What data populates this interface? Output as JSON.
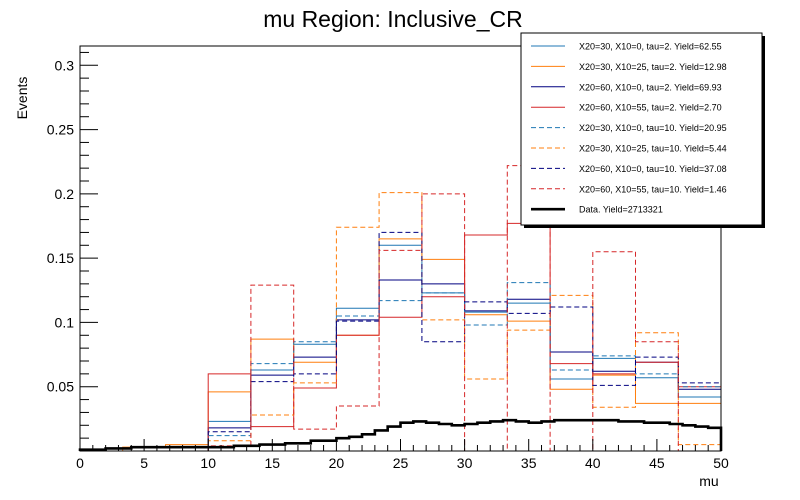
{
  "chart_data": {
    "type": "step",
    "title": "mu Region: Inclusive_CR",
    "xlabel": "mu",
    "ylabel": "Events",
    "xlim": [
      0,
      50
    ],
    "ylim": [
      0,
      0.315
    ],
    "xticks": [
      0,
      5,
      10,
      15,
      20,
      25,
      30,
      35,
      40,
      45,
      50
    ],
    "xtick_labels": [
      "0",
      "5",
      "10",
      "15",
      "20",
      "25",
      "30",
      "35",
      "40",
      "45",
      "50"
    ],
    "yticks": [
      0.05,
      0.1,
      0.15,
      0.2,
      0.25,
      0.3
    ],
    "ytick_labels": [
      "0.05",
      "0.1",
      "0.15",
      "0.2",
      "0.25",
      "0.3"
    ],
    "legend_position": "top-right",
    "coarse_bin_edges": [
      0,
      3.33,
      6.67,
      10,
      13.33,
      16.67,
      20,
      23.33,
      26.67,
      30,
      33.33,
      36.67,
      40,
      43.33,
      46.67,
      50
    ],
    "series": [
      {
        "name": "X20=30, X10=0, tau=2. Yield=62.55",
        "color": "#1f77b4",
        "dash": false,
        "values": [
          0,
          0,
          0,
          0.023,
          0.063,
          0.083,
          0.111,
          0.16,
          0.123,
          0.108,
          0.115,
          0.056,
          0.072,
          0.057,
          0.042
        ]
      },
      {
        "name": "X20=30, X10=25, tau=2. Yield=12.98",
        "color": "#ff7f0e",
        "dash": false,
        "values": [
          0,
          0.003,
          0.005,
          0.046,
          0.087,
          0.069,
          0.09,
          0.165,
          0.149,
          0.106,
          0.101,
          0.048,
          0.059,
          0.037,
          0.037
        ]
      },
      {
        "name": "X20=60, X10=0, tau=2. Yield=69.93",
        "color": "#000080",
        "dash": false,
        "values": [
          0,
          0,
          0,
          0.018,
          0.059,
          0.073,
          0.102,
          0.133,
          0.13,
          0.109,
          0.118,
          0.077,
          0.062,
          0.069,
          0.048
        ]
      },
      {
        "name": "X20=60, X10=55, tau=2. Yield=2.70",
        "color": "#d62728",
        "dash": false,
        "values": [
          0,
          0,
          0,
          0.06,
          0.019,
          0.049,
          0.09,
          0.104,
          0.12,
          0.168,
          0.177,
          0.068,
          0.06,
          0.069,
          0.05
        ]
      },
      {
        "name": "X20=30, X10=0, tau=10. Yield=20.95",
        "color": "#1f77b4",
        "dash": true,
        "values": [
          0,
          0,
          0,
          0.012,
          0.068,
          0.085,
          0.105,
          0.117,
          0.123,
          0.098,
          0.131,
          0.063,
          0.074,
          0.06,
          0.05
        ]
      },
      {
        "name": "X20=30, X10=25, tau=10. Yield=5.44",
        "color": "#ff7f0e",
        "dash": true,
        "values": [
          0,
          0,
          0,
          0.008,
          0.028,
          0.053,
          0.174,
          0.201,
          0.102,
          0.056,
          0.094,
          0.121,
          0.034,
          0.092,
          0.005
        ]
      },
      {
        "name": "X20=60, X10=0, tau=10. Yield=37.08",
        "color": "#000080",
        "dash": true,
        "values": [
          0,
          0,
          0,
          0.015,
          0.054,
          0.06,
          0.101,
          0.17,
          0.085,
          0.116,
          0.107,
          0.112,
          0.051,
          0.073,
          0.053
        ]
      },
      {
        "name": "X20=60, X10=55, tau=10. Yield=1.46",
        "color": "#d62728",
        "dash": true,
        "values": [
          0,
          0,
          0,
          0.004,
          0.129,
          0.017,
          0.035,
          0.156,
          0.2,
          0.0,
          0.222,
          0.0,
          0.155,
          0.085,
          0.0
        ]
      },
      {
        "name": "Data. Yield=2713321",
        "color": "#000000",
        "dash": false,
        "thick": true,
        "bin_edges": [
          0,
          2,
          4,
          6,
          8,
          10,
          12,
          14,
          16,
          18,
          20,
          21,
          22,
          23,
          24,
          25,
          26,
          27,
          28,
          29,
          30,
          31,
          32,
          33,
          34,
          35,
          36,
          37,
          38,
          39,
          40,
          41,
          42,
          43,
          44,
          45,
          46,
          47,
          48,
          49,
          50
        ],
        "values": [
          0.001,
          0.002,
          0.003,
          0.003,
          0.003,
          0.003,
          0.004,
          0.005,
          0.006,
          0.008,
          0.01,
          0.011,
          0.013,
          0.016,
          0.019,
          0.022,
          0.023,
          0.022,
          0.021,
          0.02,
          0.021,
          0.022,
          0.023,
          0.024,
          0.023,
          0.022,
          0.023,
          0.024,
          0.024,
          0.024,
          0.024,
          0.024,
          0.023,
          0.023,
          0.022,
          0.022,
          0.021,
          0.02,
          0.019,
          0.018
        ]
      }
    ]
  }
}
